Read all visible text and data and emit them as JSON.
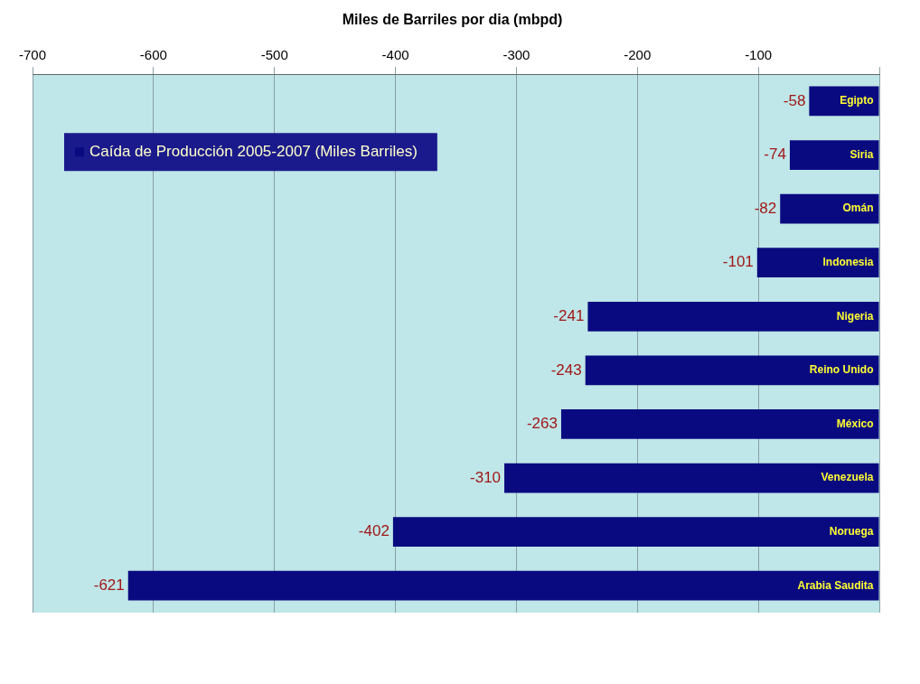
{
  "chart_data": {
    "type": "bar",
    "orientation": "horizontal",
    "title": "Miles de Barriles por dia (mbpd)",
    "categories": [
      "Egipto",
      "Siria",
      "Omán",
      "Indonesia",
      "Nigeria",
      "Reino Unido",
      "México",
      "Venezuela",
      "Noruega",
      "Arabia Saudita"
    ],
    "series": [
      {
        "name": "Caída de Producción 2005-2007 (Miles Barriles)",
        "color": "#0a0a80",
        "values": [
          -58,
          -74,
          -82,
          -101,
          -241,
          -243,
          -263,
          -310,
          -402,
          -621
        ]
      }
    ],
    "xlim": [
      -700,
      0
    ],
    "xticks": [
      -700,
      -600,
      -500,
      -400,
      -300,
      -200,
      -100,
      {
        "value": 0,
        "label": null
      }
    ],
    "grid": "x",
    "legend": "top left",
    "data_labels": true
  }
}
